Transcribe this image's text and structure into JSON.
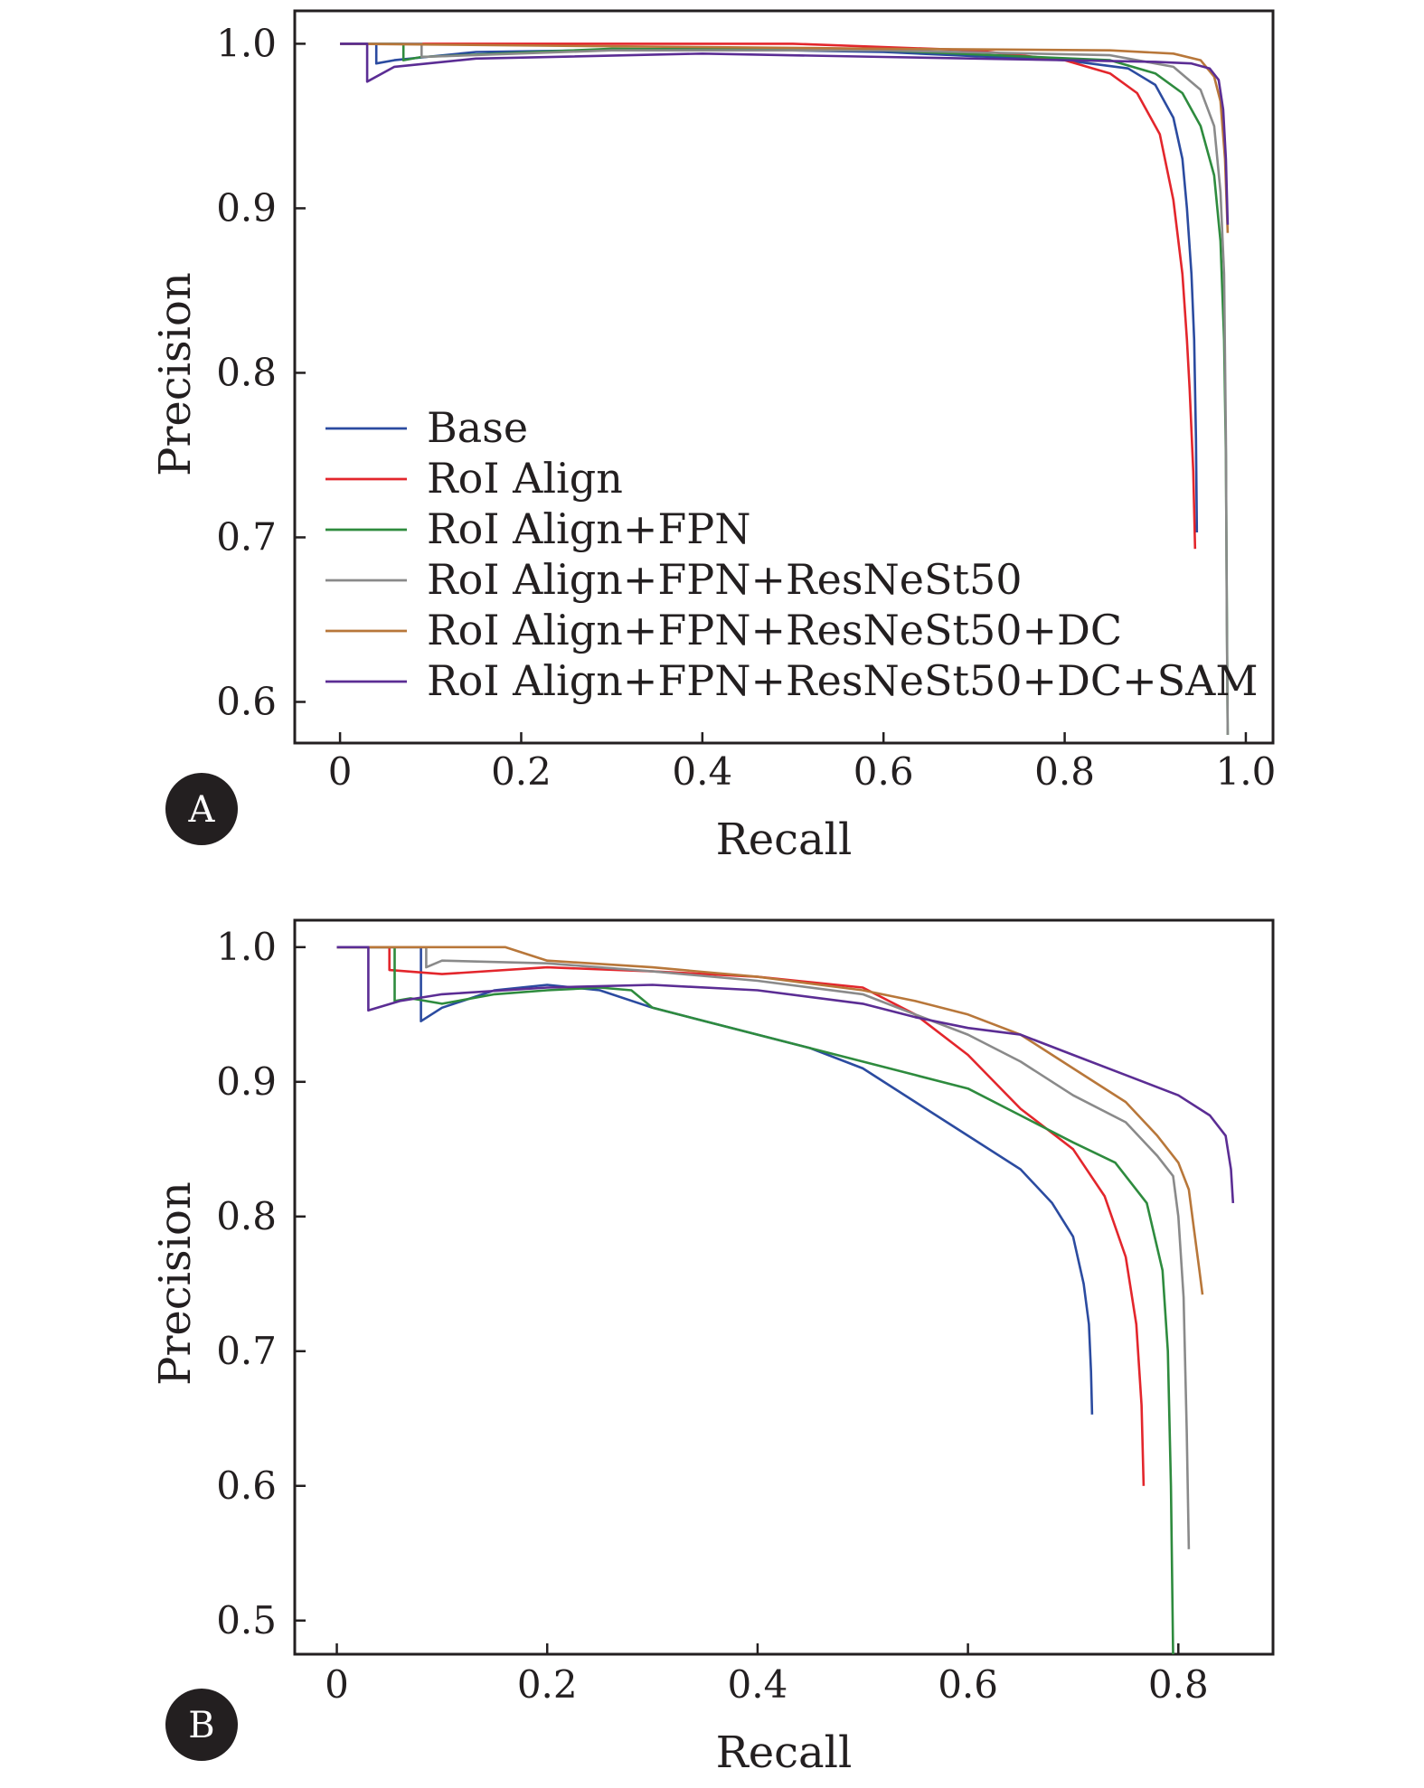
{
  "chart_data": [
    {
      "type": "line",
      "panel_label": "A",
      "xlabel": "Recall",
      "ylabel": "Precision",
      "xlim": [
        -0.05,
        1.03
      ],
      "ylim": [
        0.575,
        1.02
      ],
      "x_ticks": [
        0,
        0.2,
        0.4,
        0.6,
        0.8,
        1.0
      ],
      "x_tick_labels": [
        "0",
        "0.2",
        "0.4",
        "0.6",
        "0.8",
        "1.0"
      ],
      "y_ticks": [
        0.6,
        0.7,
        0.8,
        0.9,
        1.0
      ],
      "y_tick_labels": [
        "0.6",
        "0.7",
        "0.8",
        "0.9",
        "1.0"
      ],
      "grid": false,
      "legend": {
        "placement": "bottom-left",
        "entries": [
          "Base",
          "RoI Align",
          "RoI Align+FPN",
          "RoI Align+FPN+ResNeSt50",
          "RoI Align+FPN+ResNeSt50+DC",
          "RoI Align+FPN+ResNeSt50+DC+SAM"
        ]
      },
      "series": [
        {
          "name": "Base",
          "color": "#2b4ba0",
          "x": [
            0,
            0.04,
            0.04,
            0.06,
            0.15,
            0.4,
            0.6,
            0.8,
            0.87,
            0.9,
            0.92,
            0.93,
            0.935,
            0.94,
            0.943,
            0.945,
            0.946
          ],
          "y": [
            1.0,
            1.0,
            0.988,
            0.99,
            0.995,
            0.997,
            0.995,
            0.99,
            0.985,
            0.975,
            0.955,
            0.93,
            0.9,
            0.86,
            0.82,
            0.76,
            0.703
          ]
        },
        {
          "name": "RoI Align",
          "color": "#e3262c",
          "x": [
            0,
            0.5,
            0.7,
            0.8,
            0.85,
            0.88,
            0.905,
            0.92,
            0.93,
            0.935,
            0.938,
            0.942,
            0.944
          ],
          "y": [
            1.0,
            1.0,
            0.996,
            0.99,
            0.982,
            0.97,
            0.945,
            0.905,
            0.86,
            0.82,
            0.79,
            0.74,
            0.693
          ]
        },
        {
          "name": "RoI Align+FPN",
          "color": "#2e8b3e",
          "x": [
            0,
            0.07,
            0.07,
            0.09,
            0.3,
            0.6,
            0.85,
            0.9,
            0.93,
            0.95,
            0.965,
            0.972,
            0.976,
            0.978,
            0.979,
            0.98
          ],
          "y": [
            1.0,
            1.0,
            0.99,
            0.992,
            0.997,
            0.996,
            0.99,
            0.982,
            0.97,
            0.95,
            0.92,
            0.88,
            0.82,
            0.75,
            0.66,
            0.58
          ]
        },
        {
          "name": "RoI Align+FPN+ResNeSt50",
          "color": "#8a8a8a",
          "x": [
            0,
            0.09,
            0.09,
            0.3,
            0.6,
            0.85,
            0.92,
            0.95,
            0.965,
            0.972,
            0.976,
            0.978,
            0.979,
            0.98
          ],
          "y": [
            1.0,
            1.0,
            0.992,
            0.996,
            0.996,
            0.993,
            0.986,
            0.972,
            0.95,
            0.91,
            0.86,
            0.76,
            0.65,
            0.58
          ]
        },
        {
          "name": "RoI Align+FPN+ResNeSt50+DC",
          "color": "#b8773a",
          "x": [
            0,
            0.6,
            0.85,
            0.92,
            0.95,
            0.965,
            0.972,
            0.977,
            0.98
          ],
          "y": [
            1.0,
            0.997,
            0.996,
            0.994,
            0.99,
            0.98,
            0.965,
            0.93,
            0.885
          ]
        },
        {
          "name": "RoI Align+FPN+ResNeSt50+DC+SAM",
          "color": "#5b2d94",
          "x": [
            0,
            0.03,
            0.03,
            0.06,
            0.15,
            0.4,
            0.6,
            0.8,
            0.9,
            0.94,
            0.96,
            0.97,
            0.975,
            0.978,
            0.98
          ],
          "y": [
            1.0,
            1.0,
            0.977,
            0.986,
            0.991,
            0.994,
            0.992,
            0.99,
            0.989,
            0.988,
            0.985,
            0.978,
            0.96,
            0.93,
            0.89
          ]
        }
      ]
    },
    {
      "type": "line",
      "panel_label": "B",
      "xlabel": "Recall",
      "ylabel": "Precision",
      "xlim": [
        -0.04,
        0.89
      ],
      "ylim": [
        0.475,
        1.02
      ],
      "x_ticks": [
        0,
        0.2,
        0.4,
        0.6,
        0.8
      ],
      "x_tick_labels": [
        "0",
        "0.2",
        "0.4",
        "0.6",
        "0.8"
      ],
      "y_ticks": [
        0.5,
        0.6,
        0.7,
        0.8,
        0.9,
        1.0
      ],
      "y_tick_labels": [
        "0.5",
        "0.6",
        "0.7",
        "0.8",
        "0.9",
        "1.0"
      ],
      "grid": false,
      "series": [
        {
          "name": "Base",
          "color": "#2b4ba0",
          "x": [
            0,
            0.08,
            0.08,
            0.1,
            0.15,
            0.2,
            0.25,
            0.3,
            0.35,
            0.4,
            0.45,
            0.5,
            0.55,
            0.6,
            0.65,
            0.68,
            0.7,
            0.71,
            0.715,
            0.717,
            0.718
          ],
          "y": [
            1.0,
            1.0,
            0.945,
            0.955,
            0.968,
            0.972,
            0.968,
            0.955,
            0.945,
            0.935,
            0.925,
            0.91,
            0.885,
            0.86,
            0.835,
            0.81,
            0.785,
            0.75,
            0.72,
            0.685,
            0.653
          ]
        },
        {
          "name": "RoI Align",
          "color": "#e3262c",
          "x": [
            0,
            0.05,
            0.05,
            0.1,
            0.2,
            0.3,
            0.4,
            0.5,
            0.55,
            0.6,
            0.65,
            0.7,
            0.73,
            0.75,
            0.76,
            0.765,
            0.767
          ],
          "y": [
            1.0,
            1.0,
            0.983,
            0.98,
            0.985,
            0.982,
            0.978,
            0.97,
            0.95,
            0.92,
            0.88,
            0.85,
            0.815,
            0.77,
            0.72,
            0.66,
            0.6
          ]
        },
        {
          "name": "RoI Align+FPN",
          "color": "#2e8b3e",
          "x": [
            0,
            0.055,
            0.055,
            0.07,
            0.1,
            0.15,
            0.2,
            0.25,
            0.28,
            0.3,
            0.35,
            0.4,
            0.45,
            0.5,
            0.55,
            0.6,
            0.65,
            0.7,
            0.74,
            0.77,
            0.785,
            0.79,
            0.793,
            0.795
          ],
          "y": [
            1.0,
            1.0,
            0.96,
            0.962,
            0.958,
            0.965,
            0.968,
            0.97,
            0.968,
            0.955,
            0.945,
            0.935,
            0.925,
            0.915,
            0.905,
            0.895,
            0.875,
            0.855,
            0.84,
            0.81,
            0.76,
            0.7,
            0.6,
            0.475
          ]
        },
        {
          "name": "RoI Align+FPN+ResNeSt50",
          "color": "#8a8a8a",
          "x": [
            0,
            0.085,
            0.085,
            0.1,
            0.2,
            0.3,
            0.4,
            0.5,
            0.55,
            0.6,
            0.65,
            0.7,
            0.75,
            0.78,
            0.795,
            0.8,
            0.805,
            0.808,
            0.81
          ],
          "y": [
            1.0,
            1.0,
            0.985,
            0.99,
            0.988,
            0.982,
            0.975,
            0.965,
            0.95,
            0.935,
            0.915,
            0.89,
            0.87,
            0.845,
            0.83,
            0.8,
            0.74,
            0.64,
            0.553
          ]
        },
        {
          "name": "RoI Align+FPN+ResNeSt50+DC",
          "color": "#b8773a",
          "x": [
            0,
            0.16,
            0.2,
            0.3,
            0.4,
            0.5,
            0.55,
            0.6,
            0.65,
            0.7,
            0.75,
            0.78,
            0.8,
            0.81,
            0.815,
            0.82,
            0.823
          ],
          "y": [
            1.0,
            1.0,
            0.99,
            0.985,
            0.978,
            0.968,
            0.96,
            0.95,
            0.935,
            0.91,
            0.885,
            0.86,
            0.84,
            0.82,
            0.79,
            0.76,
            0.742
          ]
        },
        {
          "name": "RoI Align+FPN+ResNeSt50+DC+SAM",
          "color": "#5b2d94",
          "x": [
            0,
            0.03,
            0.03,
            0.06,
            0.1,
            0.2,
            0.3,
            0.4,
            0.5,
            0.55,
            0.6,
            0.65,
            0.7,
            0.75,
            0.8,
            0.83,
            0.845,
            0.85,
            0.852
          ],
          "y": [
            1.0,
            1.0,
            0.953,
            0.96,
            0.965,
            0.97,
            0.972,
            0.968,
            0.958,
            0.948,
            0.94,
            0.935,
            0.92,
            0.905,
            0.89,
            0.875,
            0.86,
            0.835,
            0.81
          ]
        }
      ]
    }
  ]
}
